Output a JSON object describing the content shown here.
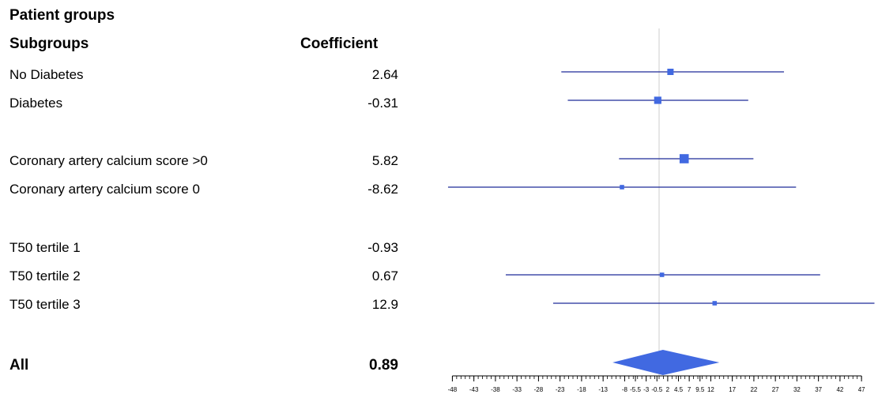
{
  "title": "Patient groups",
  "headers": {
    "subgroups": "Subgroups",
    "coefficient": "Coefficient"
  },
  "colors": {
    "marker": "#4169E1",
    "line": "#1f2a99",
    "refline": "#cccccc",
    "axis": "#000000"
  },
  "rows": [
    {
      "label": "No Diabetes",
      "coefficient": "2.64"
    },
    {
      "label": "Diabetes",
      "coefficient": "-0.31"
    },
    {
      "label": "Coronary artery calcium score >0",
      "coefficient": "5.82"
    },
    {
      "label": "Coronary artery calcium score 0",
      "coefficient": "-8.62"
    },
    {
      "label": "T50 tertile 1",
      "coefficient": "-0.93"
    },
    {
      "label": "T50 tertile 2",
      "coefficient": "0.67"
    },
    {
      "label": "T50 tertile 3",
      "coefficient": "12.9"
    }
  ],
  "overall": {
    "label": "All",
    "coefficient": "0.89"
  },
  "chart_data": {
    "type": "forest",
    "reference_line": 0,
    "xlim": [
      -48,
      50
    ],
    "x_ticks": [
      "-48",
      "-43",
      "-38",
      "-33",
      "-28",
      "-23",
      "-18",
      "-13",
      "-8",
      "-5.5",
      "-3",
      "-0.5",
      "2",
      "4.5",
      "7",
      "9.5",
      "12",
      "17",
      "22",
      "27",
      "32",
      "37",
      "42",
      "47"
    ],
    "estimates": [
      {
        "name": "No Diabetes",
        "value": 2.64,
        "lower": -22.7,
        "upper": 29.0,
        "weight": 1.0
      },
      {
        "name": "Diabetes",
        "value": -0.31,
        "lower": -21.2,
        "upper": 20.7,
        "weight": 1.15
      },
      {
        "name": "Coronary artery calcium score >0",
        "value": 5.82,
        "lower": -9.3,
        "upper": 21.9,
        "weight": 1.45
      },
      {
        "name": "Coronary artery calcium score 0",
        "value": -8.62,
        "lower": -49.0,
        "upper": 31.8,
        "weight": 0.7
      },
      {
        "name": "T50 tertile 1",
        "value": -0.93,
        "lower": null,
        "upper": null,
        "weight": 0
      },
      {
        "name": "T50 tertile 2",
        "value": 0.67,
        "lower": -35.6,
        "upper": 37.4,
        "weight": 0.7
      },
      {
        "name": "T50 tertile 3",
        "value": 12.9,
        "lower": -24.6,
        "upper": 50.0,
        "weight": 0.7
      }
    ],
    "overall": {
      "name": "All",
      "value": 0.89,
      "lower": -10.8,
      "upper": 14.0
    }
  }
}
